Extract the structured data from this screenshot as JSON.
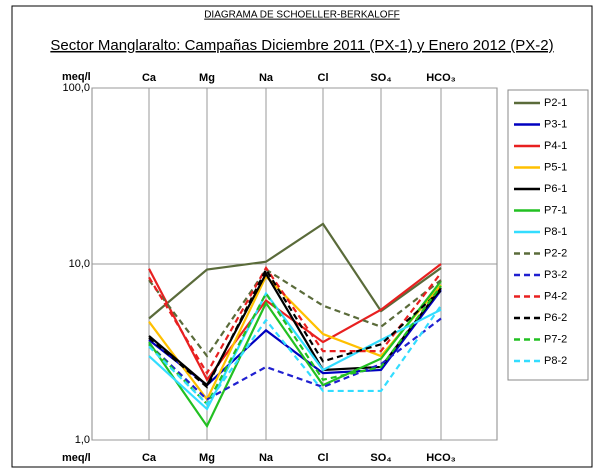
{
  "chart_data": {
    "type": "line",
    "title": "DIAGRAMA DE SCHOELLER-BERKALOFF",
    "subtitle": "Sector Manglaralto: Campañas Diciembre 2011 (PX-1) y Enero 2012 (PX-2)",
    "y_label": "meq/l",
    "categories": [
      "Ca",
      "Mg",
      "Na",
      "Cl",
      "SO₄",
      "HCO₃"
    ],
    "log_scale": true,
    "ylim": [
      1,
      100
    ],
    "yticks": [
      {
        "value": 1,
        "label": "1,0"
      },
      {
        "value": 10,
        "label": "10,0"
      },
      {
        "value": 100,
        "label": "100,0"
      }
    ],
    "grid": true,
    "legend": "right",
    "series": [
      {
        "name": "P2-1",
        "color": "#5a6b3a",
        "linestyle": "solid",
        "values": [
          4.9,
          9.3,
          10.3,
          16.9,
          5.4,
          9.5
        ]
      },
      {
        "name": "P3-1",
        "color": "#0000c0",
        "linestyle": "solid",
        "values": [
          3.7,
          2.05,
          4.2,
          2.4,
          2.5,
          7.1
        ]
      },
      {
        "name": "P4-1",
        "color": "#e82020",
        "linestyle": "solid",
        "values": [
          9.4,
          2.2,
          6.2,
          3.6,
          5.5,
          10.0
        ]
      },
      {
        "name": "P5-1",
        "color": "#ffc000",
        "linestyle": "solid",
        "values": [
          4.7,
          1.7,
          8.5,
          4.0,
          3.0,
          7.6
        ]
      },
      {
        "name": "P6-1",
        "color": "#000000",
        "linestyle": "solid",
        "values": [
          3.9,
          2.05,
          8.8,
          2.5,
          2.6,
          7.3
        ]
      },
      {
        "name": "P7-1",
        "color": "#22c022",
        "linestyle": "solid",
        "values": [
          3.6,
          1.2,
          6.0,
          2.05,
          2.9,
          8.0
        ]
      },
      {
        "name": "P8-1",
        "color": "#33ddff",
        "linestyle": "solid",
        "values": [
          3.0,
          1.5,
          6.8,
          2.5,
          3.7,
          5.5
        ]
      },
      {
        "name": "P2-2",
        "color": "#5a6b3a",
        "linestyle": "dashed",
        "values": [
          8.1,
          3.0,
          9.3,
          5.8,
          4.4,
          8.1
        ]
      },
      {
        "name": "P3-2",
        "color": "#2020d0",
        "linestyle": "dashed",
        "values": [
          3.5,
          1.7,
          2.6,
          2.0,
          2.7,
          4.9
        ]
      },
      {
        "name": "P4-2",
        "color": "#e82020",
        "linestyle": "dashed",
        "values": [
          8.4,
          2.4,
          9.5,
          3.2,
          3.2,
          8.9
        ]
      },
      {
        "name": "P6-2",
        "color": "#000000",
        "linestyle": "dashed",
        "values": [
          3.8,
          2.0,
          9.3,
          2.8,
          3.5,
          7.1
        ]
      },
      {
        "name": "P7-2",
        "color": "#22c022",
        "linestyle": "dashed",
        "values": [
          3.5,
          1.6,
          6.8,
          2.2,
          2.6,
          7.5
        ]
      },
      {
        "name": "P8-2",
        "color": "#33ddff",
        "linestyle": "dashed",
        "values": [
          3.4,
          1.6,
          4.8,
          1.9,
          1.9,
          5.8
        ]
      }
    ]
  }
}
